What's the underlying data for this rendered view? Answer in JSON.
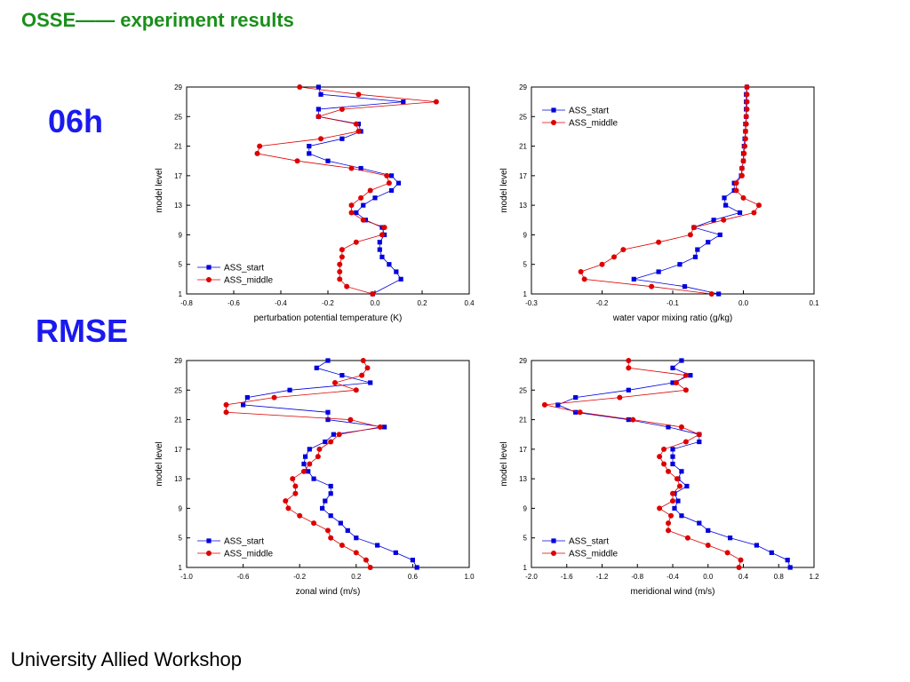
{
  "slide": {
    "title": "OSSE—— experiment results",
    "time_label": "06h",
    "metric_label": "RMSE",
    "footer": "University Allied Workshop"
  },
  "colors": {
    "series_start": "#0000dd",
    "series_middle": "#dd0000",
    "title": "#1a8f1a",
    "labels": "#1a1aee"
  },
  "chart_data": [
    {
      "type": "line",
      "xlabel": "perturbation potential temperature (K)",
      "ylabel": "model level",
      "xlim": [
        -0.8,
        0.4
      ],
      "ylim": [
        1,
        29
      ],
      "xticks": [
        -0.8,
        -0.6,
        -0.4,
        -0.2,
        0.0,
        0.2,
        0.4
      ],
      "yticks": [
        1,
        5,
        9,
        13,
        17,
        21,
        25,
        29
      ],
      "legend": "bottom-left",
      "series": [
        {
          "name": "ASS_start",
          "color": "#0000dd",
          "marker": "square",
          "points": [
            [
              -0.01,
              1
            ],
            [
              0.11,
              3
            ],
            [
              0.09,
              4
            ],
            [
              0.06,
              5
            ],
            [
              0.03,
              6
            ],
            [
              0.02,
              7
            ],
            [
              0.02,
              8
            ],
            [
              0.04,
              9
            ],
            [
              0.03,
              10
            ],
            [
              -0.04,
              11
            ],
            [
              -0.08,
              12
            ],
            [
              -0.05,
              13
            ],
            [
              0.0,
              14
            ],
            [
              0.07,
              15
            ],
            [
              0.1,
              16
            ],
            [
              0.07,
              17
            ],
            [
              -0.06,
              18
            ],
            [
              -0.2,
              19
            ],
            [
              -0.28,
              20
            ],
            [
              -0.28,
              21
            ],
            [
              -0.14,
              22
            ],
            [
              -0.06,
              23
            ],
            [
              -0.07,
              24
            ],
            [
              -0.24,
              25
            ],
            [
              -0.24,
              26
            ],
            [
              0.12,
              27
            ],
            [
              -0.23,
              28
            ],
            [
              -0.24,
              29
            ]
          ]
        },
        {
          "name": "ASS_middle",
          "color": "#dd0000",
          "marker": "circle",
          "points": [
            [
              -0.01,
              1
            ],
            [
              -0.12,
              2
            ],
            [
              -0.15,
              3
            ],
            [
              -0.15,
              4
            ],
            [
              -0.15,
              5
            ],
            [
              -0.14,
              6
            ],
            [
              -0.14,
              7
            ],
            [
              -0.08,
              8
            ],
            [
              0.03,
              9
            ],
            [
              0.04,
              10
            ],
            [
              -0.05,
              11
            ],
            [
              -0.1,
              12
            ],
            [
              -0.1,
              13
            ],
            [
              -0.06,
              14
            ],
            [
              -0.02,
              15
            ],
            [
              0.06,
              16
            ],
            [
              0.05,
              17
            ],
            [
              -0.1,
              18
            ],
            [
              -0.33,
              19
            ],
            [
              -0.5,
              20
            ],
            [
              -0.49,
              21
            ],
            [
              -0.23,
              22
            ],
            [
              -0.07,
              23
            ],
            [
              -0.08,
              24
            ],
            [
              -0.24,
              25
            ],
            [
              -0.14,
              26
            ],
            [
              0.26,
              27
            ],
            [
              -0.07,
              28
            ],
            [
              -0.32,
              29
            ]
          ]
        }
      ]
    },
    {
      "type": "line",
      "xlabel": "water vapor mixing ratio (g/kg)",
      "ylabel": "model level",
      "xlim": [
        -0.3,
        0.1
      ],
      "ylim": [
        1,
        29
      ],
      "xticks": [
        -0.3,
        -0.2,
        -0.1,
        0.0,
        0.1
      ],
      "yticks": [
        1,
        5,
        9,
        13,
        17,
        21,
        25,
        29
      ],
      "legend": "top-left",
      "series": [
        {
          "name": "ASS_start",
          "color": "#0000dd",
          "marker": "square",
          "points": [
            [
              -0.035,
              1
            ],
            [
              -0.083,
              2
            ],
            [
              -0.155,
              3
            ],
            [
              -0.12,
              4
            ],
            [
              -0.09,
              5
            ],
            [
              -0.068,
              6
            ],
            [
              -0.065,
              7
            ],
            [
              -0.05,
              8
            ],
            [
              -0.033,
              9
            ],
            [
              -0.07,
              10
            ],
            [
              -0.042,
              11
            ],
            [
              -0.005,
              12
            ],
            [
              -0.025,
              13
            ],
            [
              -0.027,
              14
            ],
            [
              -0.013,
              15
            ],
            [
              -0.013,
              16
            ],
            [
              -0.003,
              17
            ],
            [
              -0.002,
              18
            ],
            [
              0.0,
              19
            ],
            [
              0.0,
              20
            ],
            [
              0.001,
              21
            ],
            [
              0.002,
              22
            ],
            [
              0.003,
              23
            ],
            [
              0.003,
              24
            ],
            [
              0.004,
              25
            ],
            [
              0.004,
              26
            ],
            [
              0.004,
              27
            ],
            [
              0.004,
              28
            ],
            [
              0.005,
              29
            ]
          ]
        },
        {
          "name": "ASS_middle",
          "color": "#dd0000",
          "marker": "circle",
          "points": [
            [
              -0.045,
              1
            ],
            [
              -0.13,
              2
            ],
            [
              -0.225,
              3
            ],
            [
              -0.23,
              4
            ],
            [
              -0.2,
              5
            ],
            [
              -0.183,
              6
            ],
            [
              -0.17,
              7
            ],
            [
              -0.12,
              8
            ],
            [
              -0.075,
              9
            ],
            [
              -0.07,
              10
            ],
            [
              -0.028,
              11
            ],
            [
              0.015,
              12
            ],
            [
              0.022,
              13
            ],
            [
              0.0,
              14
            ],
            [
              -0.01,
              15
            ],
            [
              -0.01,
              16
            ],
            [
              -0.002,
              17
            ],
            [
              -0.002,
              18
            ],
            [
              0.0,
              19
            ],
            [
              0.001,
              20
            ],
            [
              0.002,
              21
            ],
            [
              0.003,
              22
            ],
            [
              0.003,
              23
            ],
            [
              0.004,
              24
            ],
            [
              0.004,
              25
            ],
            [
              0.005,
              26
            ],
            [
              0.005,
              27
            ],
            [
              0.005,
              28
            ],
            [
              0.005,
              29
            ]
          ]
        }
      ]
    },
    {
      "type": "line",
      "xlabel": "zonal wind (m/s)",
      "ylabel": "model level",
      "xlim": [
        -1.0,
        1.0
      ],
      "ylim": [
        1,
        29
      ],
      "xticks": [
        -1.0,
        -0.6,
        -0.2,
        0.2,
        0.6,
        1.0
      ],
      "yticks": [
        1,
        5,
        9,
        13,
        17,
        21,
        25,
        29
      ],
      "legend": "bottom-left",
      "series": [
        {
          "name": "ASS_start",
          "color": "#0000dd",
          "marker": "square",
          "points": [
            [
              0.63,
              1
            ],
            [
              0.6,
              2
            ],
            [
              0.48,
              3
            ],
            [
              0.35,
              4
            ],
            [
              0.2,
              5
            ],
            [
              0.14,
              6
            ],
            [
              0.09,
              7
            ],
            [
              0.02,
              8
            ],
            [
              -0.04,
              9
            ],
            [
              -0.02,
              10
            ],
            [
              0.02,
              11
            ],
            [
              0.02,
              12
            ],
            [
              -0.1,
              13
            ],
            [
              -0.14,
              14
            ],
            [
              -0.17,
              15
            ],
            [
              -0.16,
              16
            ],
            [
              -0.13,
              17
            ],
            [
              -0.02,
              18
            ],
            [
              0.04,
              19
            ],
            [
              0.4,
              20
            ],
            [
              0.0,
              21
            ],
            [
              0.0,
              22
            ],
            [
              -0.6,
              23
            ],
            [
              -0.57,
              24
            ],
            [
              -0.27,
              25
            ],
            [
              0.3,
              26
            ],
            [
              0.1,
              27
            ],
            [
              -0.08,
              28
            ],
            [
              0.0,
              29
            ]
          ]
        },
        {
          "name": "ASS_middle",
          "color": "#dd0000",
          "marker": "circle",
          "points": [
            [
              0.3,
              1
            ],
            [
              0.27,
              2
            ],
            [
              0.2,
              3
            ],
            [
              0.1,
              4
            ],
            [
              0.02,
              5
            ],
            [
              0.0,
              6
            ],
            [
              -0.1,
              7
            ],
            [
              -0.2,
              8
            ],
            [
              -0.28,
              9
            ],
            [
              -0.3,
              10
            ],
            [
              -0.23,
              11
            ],
            [
              -0.23,
              12
            ],
            [
              -0.25,
              13
            ],
            [
              -0.17,
              14
            ],
            [
              -0.13,
              15
            ],
            [
              -0.07,
              16
            ],
            [
              -0.06,
              17
            ],
            [
              0.02,
              18
            ],
            [
              0.08,
              19
            ],
            [
              0.37,
              20
            ],
            [
              0.16,
              21
            ],
            [
              -0.72,
              22
            ],
            [
              -0.72,
              23
            ],
            [
              -0.38,
              24
            ],
            [
              0.2,
              25
            ],
            [
              0.05,
              26
            ],
            [
              0.24,
              27
            ],
            [
              0.28,
              28
            ],
            [
              0.25,
              29
            ]
          ]
        }
      ]
    },
    {
      "type": "line",
      "xlabel": "meridional wind (m/s)",
      "ylabel": "model level",
      "xlim": [
        -2.0,
        1.2
      ],
      "ylim": [
        1,
        29
      ],
      "xticks": [
        -2.0,
        -1.6,
        -1.2,
        -0.8,
        -0.4,
        0.0,
        0.4,
        0.8,
        1.2
      ],
      "yticks": [
        1,
        5,
        9,
        13,
        17,
        21,
        25,
        29
      ],
      "legend": "bottom-left",
      "series": [
        {
          "name": "ASS_start",
          "color": "#0000dd",
          "marker": "square",
          "points": [
            [
              0.93,
              1
            ],
            [
              0.9,
              2
            ],
            [
              0.72,
              3
            ],
            [
              0.55,
              4
            ],
            [
              0.25,
              5
            ],
            [
              0.0,
              6
            ],
            [
              -0.1,
              7
            ],
            [
              -0.3,
              8
            ],
            [
              -0.38,
              9
            ],
            [
              -0.34,
              10
            ],
            [
              -0.38,
              11
            ],
            [
              -0.24,
              12
            ],
            [
              -0.34,
              13
            ],
            [
              -0.3,
              14
            ],
            [
              -0.4,
              15
            ],
            [
              -0.4,
              16
            ],
            [
              -0.4,
              17
            ],
            [
              -0.1,
              18
            ],
            [
              -0.1,
              19
            ],
            [
              -0.45,
              20
            ],
            [
              -0.9,
              21
            ],
            [
              -1.5,
              22
            ],
            [
              -1.7,
              23
            ],
            [
              -1.5,
              24
            ],
            [
              -0.9,
              25
            ],
            [
              -0.4,
              26
            ],
            [
              -0.2,
              27
            ],
            [
              -0.4,
              28
            ],
            [
              -0.3,
              29
            ]
          ]
        },
        {
          "name": "ASS_middle",
          "color": "#dd0000",
          "marker": "circle",
          "points": [
            [
              0.35,
              1
            ],
            [
              0.37,
              2
            ],
            [
              0.22,
              3
            ],
            [
              0.0,
              4
            ],
            [
              -0.23,
              5
            ],
            [
              -0.45,
              6
            ],
            [
              -0.45,
              7
            ],
            [
              -0.42,
              8
            ],
            [
              -0.55,
              9
            ],
            [
              -0.4,
              10
            ],
            [
              -0.4,
              11
            ],
            [
              -0.32,
              12
            ],
            [
              -0.35,
              13
            ],
            [
              -0.45,
              14
            ],
            [
              -0.5,
              15
            ],
            [
              -0.55,
              16
            ],
            [
              -0.5,
              17
            ],
            [
              -0.25,
              18
            ],
            [
              -0.1,
              19
            ],
            [
              -0.3,
              20
            ],
            [
              -0.85,
              21
            ],
            [
              -1.45,
              22
            ],
            [
              -1.85,
              23
            ],
            [
              -1.0,
              24
            ],
            [
              -0.25,
              25
            ],
            [
              -0.36,
              26
            ],
            [
              -0.25,
              27
            ],
            [
              -0.9,
              28
            ],
            [
              -0.9,
              29
            ]
          ]
        }
      ]
    }
  ]
}
